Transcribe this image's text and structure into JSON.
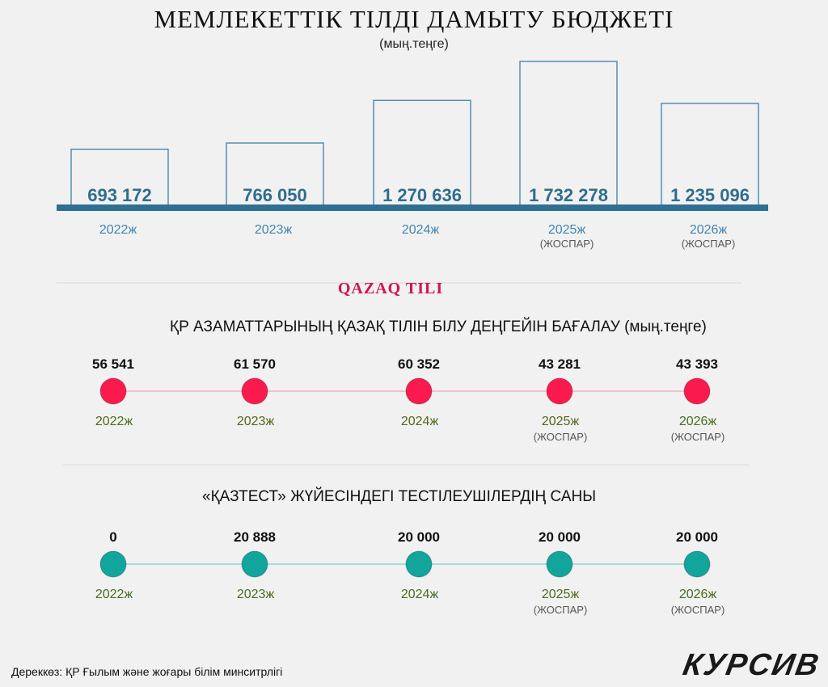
{
  "title": "МЕМЛЕКЕТТІК ТІЛДІ ДАМЫТУ БЮДЖЕТІ",
  "subtitle": "(мың.теңге)",
  "section_logo": "QAZAQ TILI",
  "section1_title": "ҚР АЗАМАТТАРЫНЫҢ ҚАЗАҚ ТІЛІН БІЛУ ДЕҢГЕЙІН БАҒАЛАУ (мың.теңге)",
  "section2_title": "«ҚАЗТЕСТ» ЖҮЙЕСІНДЕГІ ТЕСТІЛЕУШІЛЕРДІҢ САНЫ",
  "source": "Дереккөз: ҚР Ғылым және жоғары білім минситрлігі",
  "logo": "КУРСИВ",
  "colors": {
    "bar_stroke": "#3c7fa5",
    "bar_value": "#2f6d8e",
    "baseline": "#2f6f93",
    "year_blue": "#3f86b2",
    "red": "#fb1a4d",
    "red_line": "#f3a4b6",
    "teal": "#11a59c",
    "teal_line": "#7ecfca",
    "year_green": "#4a6b1e"
  },
  "chart_data": [
    {
      "type": "bar",
      "title": "МЕМЛЕКЕТТІК ТІЛДІ ДАМЫТУ БЮДЖЕТІ",
      "unit": "(мың.теңге)",
      "categories": [
        "2022ж",
        "2023ж",
        "2024ж",
        "2025ж",
        "2026ж"
      ],
      "notes": [
        "",
        "",
        "",
        "(ЖОСПАР)",
        "(ЖОСПАР)"
      ],
      "values": [
        693172,
        766050,
        1270636,
        1732278,
        1235096
      ],
      "value_labels": [
        "693 172",
        "766 050",
        "1 270 636",
        "1 732 278",
        "1 235 096"
      ],
      "ylim": [
        0,
        1732278
      ]
    },
    {
      "type": "scatter",
      "title": "ҚР АЗАМАТТАРЫНЫҢ ҚАЗАҚ ТІЛІН БІЛУ ДЕҢГЕЙІН БАҒАЛАУ (мың.теңге)",
      "categories": [
        "2022ж",
        "2023ж",
        "2024ж",
        "2025ж",
        "2026ж"
      ],
      "notes": [
        "",
        "",
        "",
        "(ЖОСПАР)",
        "(ЖОСПАР)"
      ],
      "values": [
        56541,
        61570,
        60352,
        43281,
        43393
      ],
      "value_labels": [
        "56 541",
        "61 570",
        "60 352",
        "43 281",
        "43 393"
      ]
    },
    {
      "type": "scatter",
      "title": "«ҚАЗТЕСТ» ЖҮЙЕСІНДЕГІ ТЕСТІЛЕУШІЛЕРДІҢ САНЫ",
      "categories": [
        "2022ж",
        "2023ж",
        "2024ж",
        "2025ж",
        "2026ж"
      ],
      "notes": [
        "",
        "",
        "",
        "(ЖОСПАР)",
        "(ЖОСПАР)"
      ],
      "values": [
        0,
        20888,
        20000,
        20000,
        20000
      ],
      "value_labels": [
        "0",
        "20 888",
        "20 000",
        "20 000",
        "20 000"
      ]
    }
  ]
}
